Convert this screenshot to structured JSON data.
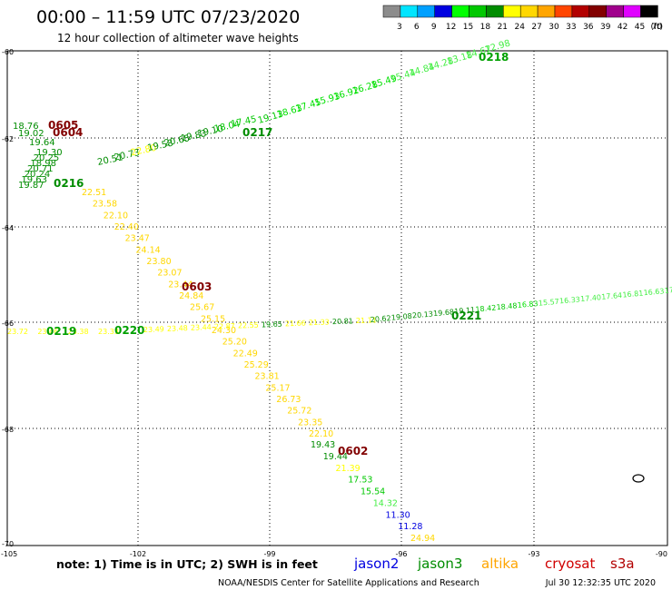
{
  "header": {
    "title": "00:00 – 11:59 UTC 07/23/2020",
    "subtitle": "12 hour collection of altimeter wave heights"
  },
  "colorbar": {
    "ticks": [
      "3",
      "6",
      "9",
      "12",
      "15",
      "18",
      "21",
      "24",
      "27",
      "30",
      "33",
      "36",
      "39",
      "42",
      "45",
      "70"
    ],
    "unit": "(ft)",
    "colors": [
      "#8c8c8c",
      "#00e5ff",
      "#00a0ff",
      "#0000e0",
      "#00ff00",
      "#00c800",
      "#008c00",
      "#ffff00",
      "#ffd700",
      "#ffa500",
      "#ff4500",
      "#b20000",
      "#820000",
      "#a0008c",
      "#e000ff",
      "#000000"
    ]
  },
  "axes": {
    "lat_labels": [
      "-60",
      "-62",
      "-64",
      "-66",
      "-68",
      "-70"
    ],
    "lon_labels": [
      "-105",
      "-102",
      "-99",
      "-96",
      "-93",
      "-90"
    ]
  },
  "tracks": [
    {
      "id": "track-0218",
      "color": "#008c00",
      "label": "0218",
      "label_color": "#00a000",
      "points": [
        [
          "19.13",
          "#00c800"
        ],
        [
          "18.63",
          "#00e000"
        ],
        [
          "17.45",
          "#00e000"
        ],
        [
          "15.93",
          "#00e000"
        ],
        [
          "16.92",
          "#00e000"
        ],
        [
          "16.28",
          "#00e000"
        ],
        [
          "15.49",
          "#00e000"
        ],
        [
          "15.44",
          "#44ee44"
        ],
        [
          "14.84",
          "#44ee44"
        ],
        [
          "14.28",
          "#44ee44"
        ],
        [
          "13.18",
          "#44ee44"
        ],
        [
          "14.67",
          "#44ee44"
        ],
        [
          "12.98",
          "#44ee44"
        ]
      ]
    },
    {
      "id": "track-0217",
      "color": "#008c00",
      "label": "0217",
      "label_color": "#008c00",
      "points": [
        [
          "20.51",
          "#008c00"
        ],
        [
          "20.73",
          "#008c00"
        ],
        [
          "22.80",
          "#ffff00"
        ],
        [
          "19.58",
          "#008c00"
        ],
        [
          "20.65",
          "#008c00"
        ],
        [
          "19.83",
          "#008c00"
        ],
        [
          "19.10",
          "#008c00"
        ],
        [
          "18.04",
          "#00c800"
        ],
        [
          "17.45",
          "#00c800"
        ]
      ]
    },
    {
      "id": "track-0605",
      "color": "#820000",
      "label": "0605",
      "label_color": "#820000",
      "points": [
        [
          "18.76",
          "#008c00"
        ]
      ]
    },
    {
      "id": "track-0604",
      "color": "#820000",
      "label": "0604",
      "label_color": "#820000",
      "points": [
        [
          "19.02",
          "#008c00"
        ],
        [
          "19.64",
          "#008c00"
        ]
      ]
    },
    {
      "id": "track-0216",
      "color": "#008c00",
      "label": "0216",
      "label_color": "#008c00",
      "points": [
        [
          "19.30",
          "#008c00"
        ],
        [
          "20.25",
          "#008c00"
        ],
        [
          "18.98",
          "#008c00"
        ],
        [
          "20.71",
          "#008c00"
        ],
        [
          "20.24",
          "#008c00"
        ],
        [
          "19.63",
          "#008c00"
        ],
        [
          "19.87",
          "#008c00"
        ]
      ]
    },
    {
      "id": "track-0603",
      "color": "#820000",
      "label": "0603",
      "label_color": "#820000",
      "points": [
        [
          "22.51",
          "#ffd700"
        ],
        [
          "23.58",
          "#ffd700"
        ],
        [
          "22.10",
          "#ffd700"
        ],
        [
          "22.40",
          "#ffd700"
        ],
        [
          "23.47",
          "#ffd700"
        ],
        [
          "24.14",
          "#ffd700"
        ],
        [
          "23.80",
          "#ffd700"
        ],
        [
          "23.07",
          "#ffd700"
        ],
        [
          "23.44",
          "#ffd700"
        ],
        [
          "24.84",
          "#ffd700"
        ],
        [
          "25.67",
          "#ffd700"
        ],
        [
          "25.15",
          "#ffd700"
        ],
        [
          "24.30",
          "#ffd700"
        ],
        [
          "25.20",
          "#ffd700"
        ],
        [
          "22.49",
          "#ffd700"
        ],
        [
          "25.29",
          "#ffd700"
        ],
        [
          "23.81",
          "#ffd700"
        ],
        [
          "25.17",
          "#ffd700"
        ],
        [
          "26.73",
          "#ffd700"
        ],
        [
          "25.72",
          "#ffd700"
        ],
        [
          "23.35",
          "#ffd700"
        ],
        [
          "22.10",
          "#ffd700"
        ]
      ]
    },
    {
      "id": "track-0602",
      "color": "#820000",
      "label": "0602",
      "label_color": "#820000",
      "points": [
        [
          "19.43",
          "#008c00"
        ],
        [
          "19.44",
          "#008c00"
        ],
        [
          "21.39",
          "#ffff00"
        ],
        [
          "17.53",
          "#00c800"
        ],
        [
          "15.54",
          "#00c800"
        ],
        [
          "14.32",
          "#44ee44"
        ],
        [
          "11.30",
          "#0000e0"
        ],
        [
          "11.28",
          "#0000e0"
        ],
        [
          "24.94",
          "#ffd700"
        ]
      ]
    },
    {
      "id": "track-0219",
      "color": "#008c00",
      "label": "0219",
      "label_color": "#00a000",
      "points": [
        [
          "23.72",
          "#ffff00"
        ],
        [
          "23.46",
          "#ffff00"
        ],
        [
          "23.38",
          "#ffff00"
        ],
        [
          "23.33",
          "#ffff00"
        ]
      ]
    },
    {
      "id": "track-0220",
      "color": "#008c00",
      "label": "0220",
      "label_color": "#00a000",
      "points": [
        [
          "23.49",
          "#ffff00"
        ],
        [
          "23.48",
          "#ffff00"
        ],
        [
          "23.44",
          "#ffff00"
        ],
        [
          "22.87",
          "#ffff00"
        ],
        [
          "22.55",
          "#ffff00"
        ],
        [
          "19.65",
          "#008c00"
        ],
        [
          "21.66",
          "#ffff00"
        ],
        [
          "21.33",
          "#ffff00"
        ],
        [
          "20.81",
          "#008c00"
        ],
        [
          "21.11",
          "#ffff00"
        ]
      ]
    },
    {
      "id": "track-0221",
      "color": "#008c00",
      "label": "0221",
      "label_color": "#008c00",
      "points": [
        [
          "20.62",
          "#008c00"
        ],
        [
          "19.08",
          "#008c00"
        ],
        [
          "20.13",
          "#008c00"
        ],
        [
          "19.68",
          "#008c00"
        ],
        [
          "19.11",
          "#008c00"
        ],
        [
          "18.42",
          "#00c800"
        ],
        [
          "18.48",
          "#00c800"
        ],
        [
          "16.83",
          "#00e000"
        ],
        [
          "15.57",
          "#44ee44"
        ],
        [
          "16.33",
          "#44ee44"
        ],
        [
          "17.40",
          "#44ee44"
        ],
        [
          "17.64",
          "#44ee44"
        ],
        [
          "16.81",
          "#44ee44"
        ],
        [
          "16.63",
          "#44ee44"
        ],
        [
          "17.47",
          "#44ee44"
        ]
      ]
    }
  ],
  "notes": {
    "text": "note: 1) Time is in UTC; 2) SWH is in feet",
    "legend": [
      {
        "label": "jason2",
        "color": "#0000e0"
      },
      {
        "label": "jason3",
        "color": "#008c00"
      },
      {
        "label": "altika",
        "color": "#ffa500"
      },
      {
        "label": "cryosat",
        "color": "#d00000"
      },
      {
        "label": "s3a",
        "color": "#b20000"
      }
    ],
    "credit": "NOAA/NESDIS Center for Satellite Applications and Research",
    "timestamp": "Jul 30 12:32:35 UTC 2020"
  }
}
